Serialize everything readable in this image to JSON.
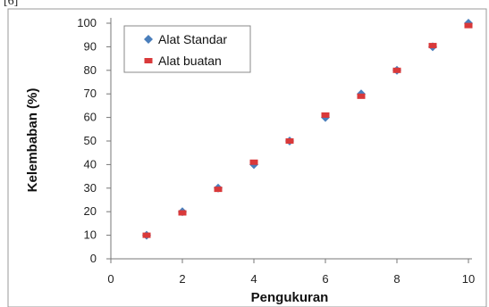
{
  "stray_text": "[6]",
  "chart_data": {
    "type": "scatter",
    "title": "",
    "xlabel": "Pengukuran",
    "ylabel": "Kelembaban (%)",
    "xlim": [
      0,
      10
    ],
    "ylim": [
      0,
      100
    ],
    "xticks": [
      0,
      2,
      4,
      6,
      8,
      10
    ],
    "yticks": [
      0,
      10,
      20,
      30,
      40,
      50,
      60,
      70,
      80,
      90,
      100
    ],
    "grid": false,
    "legend_position": "top-left",
    "series": [
      {
        "name": "Alat Standar",
        "marker": "diamond",
        "color": "#4a7ebb",
        "x": [
          1,
          2,
          3,
          4,
          5,
          6,
          7,
          8,
          9,
          10
        ],
        "y": [
          10,
          20,
          30,
          40,
          50,
          60,
          70,
          80,
          90,
          100
        ]
      },
      {
        "name": "Alat buatan",
        "marker": "square",
        "color": "#d9393a",
        "x": [
          1,
          2,
          3,
          4,
          5,
          6,
          7,
          8,
          9,
          10
        ],
        "y": [
          10,
          19.5,
          29.5,
          41,
          50,
          61,
          69,
          80,
          90.5,
          99
        ]
      }
    ]
  }
}
